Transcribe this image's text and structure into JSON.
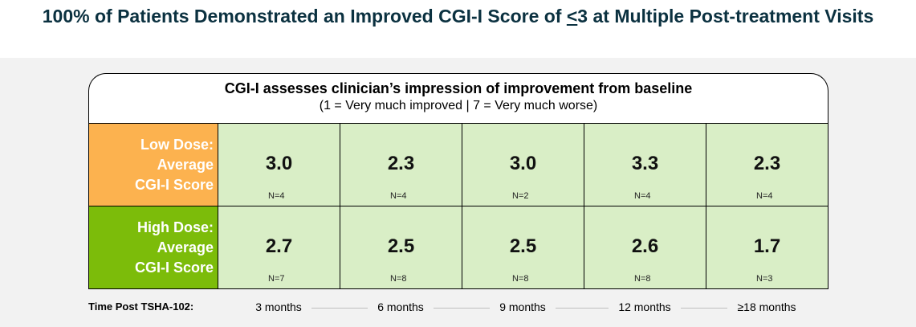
{
  "title": {
    "before": "100% of Patients Demonstrated an Improved CGI-I Score of ",
    "underlined": "<",
    "after": "3 at Multiple Post-treatment Visits"
  },
  "header": {
    "title": "CGI-I assesses clinician’s impression of improvement from baseline",
    "subtitle": "(1 = Very much improved | 7 = Very much worse)"
  },
  "colors": {
    "low_dose": "#fcb24f",
    "high_dose": "#7cbc0a",
    "cell": "#d9eec6"
  },
  "chart_data": {
    "type": "table",
    "categories": [
      "3 months",
      "6 months",
      "9 months",
      "12 months",
      "≥18 months"
    ],
    "series": [
      {
        "label_lines": [
          "Low Dose:",
          "Average",
          "CGI-I Score"
        ],
        "values": [
          "3.0",
          "2.3",
          "3.0",
          "3.3",
          "2.3"
        ],
        "n": [
          "N=4",
          "N=4",
          "N=2",
          "N=4",
          "N=4"
        ]
      },
      {
        "label_lines": [
          "High Dose:",
          "Average",
          "CGI-I Score"
        ],
        "values": [
          "2.7",
          "2.5",
          "2.5",
          "2.6",
          "1.7"
        ],
        "n": [
          "N=7",
          "N=8",
          "N=8",
          "N=8",
          "N=3"
        ]
      }
    ],
    "xlabel": "Time Post TSHA-102:"
  }
}
